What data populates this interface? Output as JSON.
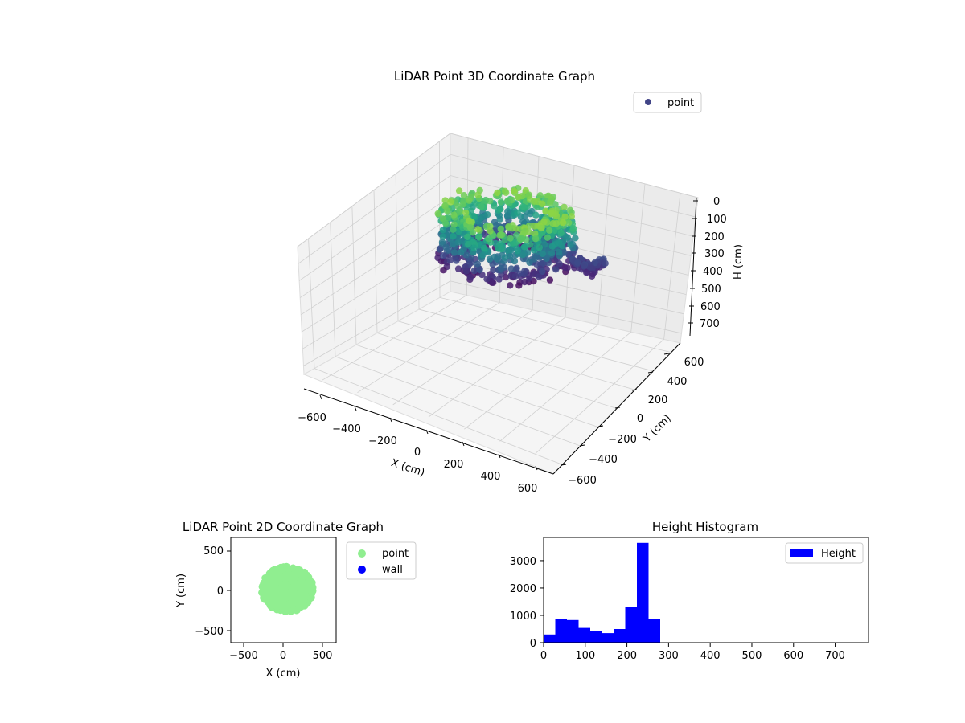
{
  "chart_data": [
    {
      "type": "scatter",
      "projection": "3d",
      "title": "LiDAR Point 3D Coordinate Graph",
      "xlabel": "X (cm)",
      "ylabel": "Y (cm)",
      "zlabel": "H (cm)",
      "xlim": [
        -700,
        700
      ],
      "ylim": [
        -700,
        700
      ],
      "zlim": [
        0,
        750
      ],
      "z_inverted": true,
      "xticks": [
        "−600",
        "−400",
        "−200",
        "0",
        "200",
        "400",
        "600"
      ],
      "yticks": [
        "−600",
        "−400",
        "−200",
        "0",
        "200",
        "400",
        "600"
      ],
      "zticks": [
        "0",
        "100",
        "200",
        "300",
        "400",
        "500",
        "600",
        "700"
      ],
      "colormap": "viridis",
      "color_by": "height",
      "legend": {
        "label": "point",
        "color": "#414487",
        "placement": "top-right"
      },
      "cluster": {
        "shape": "ring",
        "center_x": 0,
        "center_y": 0,
        "radius_x": 300,
        "radius_y": 280,
        "height_range": [
          50,
          290
        ],
        "side_lobe": {
          "center_x": 330,
          "center_y": 150,
          "height": 250
        }
      },
      "grid": true
    },
    {
      "type": "scatter",
      "title": "LiDAR Point 2D Coordinate Graph",
      "xlabel": "X (cm)",
      "ylabel": "Y (cm)",
      "xlim": [
        -670,
        670
      ],
      "ylim": [
        -670,
        670
      ],
      "xticks": [
        "−500",
        "0",
        "500"
      ],
      "yticks": [
        "−500",
        "0",
        "500"
      ],
      "series": [
        {
          "name": "point",
          "color": "#90ee90",
          "region": {
            "x_range": [
              -320,
              440
            ],
            "y_range": [
              -300,
              330
            ],
            "center": [
              50,
              10
            ]
          }
        },
        {
          "name": "wall",
          "color": "#0000ff",
          "points": []
        }
      ],
      "legend_placement": "outside-right",
      "grid": false
    },
    {
      "type": "bar",
      "histogram": true,
      "title": "Height Histogram",
      "xlabel": "",
      "ylabel": "",
      "bin_width": 28,
      "bin_starts": [
        0,
        28,
        56,
        84,
        112,
        140,
        168,
        196,
        224,
        252,
        280,
        308,
        336,
        364,
        392,
        420,
        448,
        476,
        504,
        532,
        560,
        588,
        616,
        644,
        672,
        700,
        728
      ],
      "values": [
        300,
        860,
        830,
        540,
        440,
        350,
        500,
        1300,
        3650,
        870,
        0,
        0,
        0,
        0,
        0,
        0,
        0,
        0,
        0,
        0,
        0,
        0,
        0,
        0,
        0,
        0,
        0
      ],
      "xlim": [
        0,
        780
      ],
      "ylim": [
        0,
        3850
      ],
      "xticks": [
        "0",
        "100",
        "200",
        "300",
        "400",
        "500",
        "600",
        "700"
      ],
      "yticks": [
        "0",
        "1000",
        "2000",
        "3000"
      ],
      "series": [
        {
          "name": "Height",
          "color": "#0000ff"
        }
      ],
      "legend_placement": "top-right",
      "grid": false
    }
  ]
}
